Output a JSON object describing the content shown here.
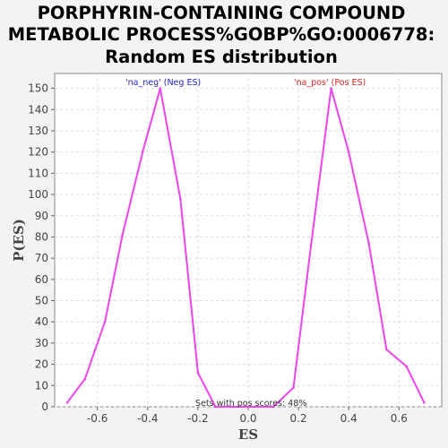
{
  "chart_data": {
    "type": "line",
    "title_lines": [
      "PORPHYRIN-CONTAINING COMPOUND",
      "METABOLIC PROCESS%GOBP%GO:0006778:",
      "Random ES distribution"
    ],
    "xlabel": "ES",
    "ylabel": "P(ES)",
    "xlim": [
      -0.77,
      0.77
    ],
    "ylim": [
      0,
      157
    ],
    "x_ticks": [
      "-0.6",
      "-0.4",
      "-0.2",
      "0.0",
      "0.2",
      "0.4",
      "0.6"
    ],
    "x_tick_values": [
      -0.6,
      -0.4,
      -0.2,
      0.0,
      0.2,
      0.4,
      0.6
    ],
    "y_ticks": [
      "0",
      "10",
      "20",
      "30",
      "40",
      "50",
      "60",
      "70",
      "80",
      "90",
      "100",
      "110",
      "120",
      "130",
      "140",
      "150"
    ],
    "y_tick_values": [
      0,
      10,
      20,
      30,
      40,
      50,
      60,
      70,
      80,
      90,
      100,
      110,
      120,
      130,
      140,
      150
    ],
    "grid": true,
    "line_color": "#ee44ee",
    "series": [
      {
        "x": [
          -0.72,
          -0.65,
          -0.57,
          -0.5,
          -0.42,
          -0.35,
          -0.27,
          -0.2,
          -0.13,
          0.0,
          0.1,
          0.18,
          0.25,
          0.33,
          0.4,
          0.48,
          0.55,
          0.63,
          0.7
        ],
        "y": [
          2,
          13,
          40,
          81,
          120,
          150,
          98,
          16,
          0,
          0,
          0,
          9,
          76,
          150,
          120,
          77,
          27,
          19,
          2
        ]
      }
    ],
    "legend": [
      {
        "label": "'na_neg' (Neg ES)",
        "color": "#2222cc",
        "position": "top-left"
      },
      {
        "label": "'na_pos' (Pos ES)",
        "color": "#dd2222",
        "position": "top-right"
      }
    ],
    "annotation": "Sets with pos scores: 48%"
  }
}
